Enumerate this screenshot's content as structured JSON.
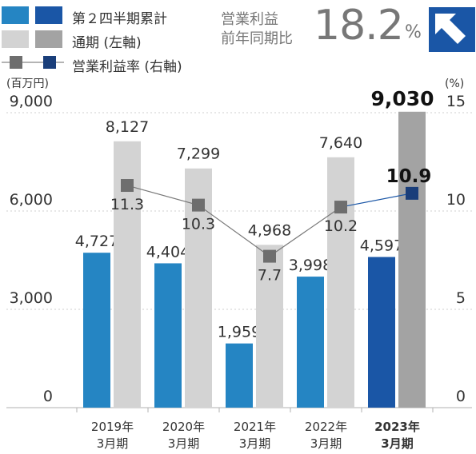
{
  "legend": {
    "q2_label": "第２四半期累計",
    "full_label": "通期 (左軸)",
    "margin_label": "営業利益率 (右軸)"
  },
  "kpi": {
    "label_line1": "営業利益",
    "label_line2": "前年同期比",
    "value": "18.2",
    "unit": "%",
    "arrow_icon": "up-left-arrow-icon"
  },
  "colors": {
    "q2_past": "#2585c3",
    "q2_latest": "#1a56a6",
    "full_past": "#d3d3d3",
    "full_latest": "#a3a3a3",
    "margin_marker_past": "#6e6e6e",
    "margin_marker_latest": "#1a3e7a"
  },
  "chart_data": {
    "type": "bar",
    "categories": [
      "2019年\n3月期",
      "2020年\n3月期",
      "2021年\n3月期",
      "2022年\n3月期",
      "2023年\n3月期"
    ],
    "left_axis": {
      "unit": "(百万円)",
      "ticks": [
        "9,000",
        "6,000",
        "3,000",
        "0"
      ],
      "ylim": [
        0,
        9000
      ]
    },
    "right_axis": {
      "unit": "(%)",
      "ticks": [
        "15",
        "10",
        "5",
        "0"
      ],
      "ylim": [
        0,
        15
      ]
    },
    "series": [
      {
        "name": "第２四半期累計",
        "values": [
          4727,
          4404,
          1959,
          3998,
          4597
        ],
        "labels": [
          "4,727",
          "4,404",
          "1,959",
          "3,998",
          "4,597"
        ]
      },
      {
        "name": "通期 (左軸)",
        "values": [
          8127,
          7299,
          4968,
          7640,
          9030
        ],
        "labels": [
          "8,127",
          "7,299",
          "4,968",
          "7,640",
          "9,030"
        ]
      },
      {
        "name": "営業利益率 (右軸)",
        "axis": "right",
        "values": [
          11.3,
          10.3,
          7.7,
          10.2,
          10.9
        ],
        "labels": [
          "11.3",
          "10.3",
          "7.7",
          "10.2",
          "10.9"
        ]
      }
    ],
    "highlight_index": 4
  }
}
